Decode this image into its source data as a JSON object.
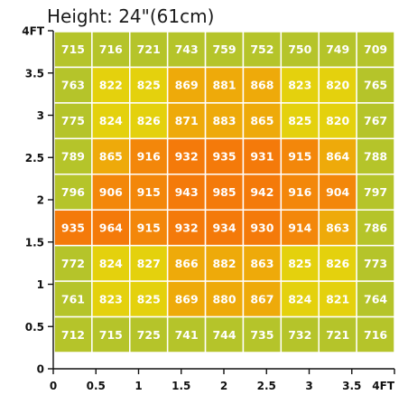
{
  "chart_data": {
    "type": "heatmap",
    "title": "Height: 24\"(61cm)",
    "x_tick_labels": [
      "0",
      "0.5",
      "1",
      "1.5",
      "2",
      "2.5",
      "3",
      "3.5",
      "4FT"
    ],
    "y_tick_labels": [
      "0",
      "0.5",
      "1",
      "1.5",
      "2",
      "2.5",
      "3",
      "3.5",
      "4FT"
    ],
    "xlim": [
      0,
      4
    ],
    "ylim": [
      0,
      4
    ],
    "rows_top_to_bottom": [
      [
        715,
        716,
        721,
        743,
        759,
        752,
        750,
        749,
        709
      ],
      [
        763,
        822,
        825,
        869,
        881,
        868,
        823,
        820,
        765
      ],
      [
        775,
        824,
        826,
        871,
        883,
        865,
        825,
        820,
        767
      ],
      [
        789,
        865,
        916,
        932,
        935,
        931,
        915,
        864,
        788
      ],
      [
        796,
        906,
        915,
        943,
        985,
        942,
        916,
        904,
        797
      ],
      [
        935,
        964,
        915,
        932,
        934,
        930,
        914,
        863,
        786
      ],
      [
        772,
        824,
        827,
        866,
        882,
        863,
        825,
        826,
        773
      ],
      [
        761,
        823,
        825,
        869,
        880,
        867,
        824,
        821,
        764
      ],
      [
        712,
        715,
        725,
        741,
        744,
        735,
        732,
        721,
        716
      ]
    ],
    "colors": {
      "low": "#b5c42a",
      "mid_low": "#e4d10d",
      "mid": "#eeaa0a",
      "high": "#f3870a",
      "peak": "#f47a0a",
      "grid_line": "#ffffff"
    },
    "grid": true
  }
}
